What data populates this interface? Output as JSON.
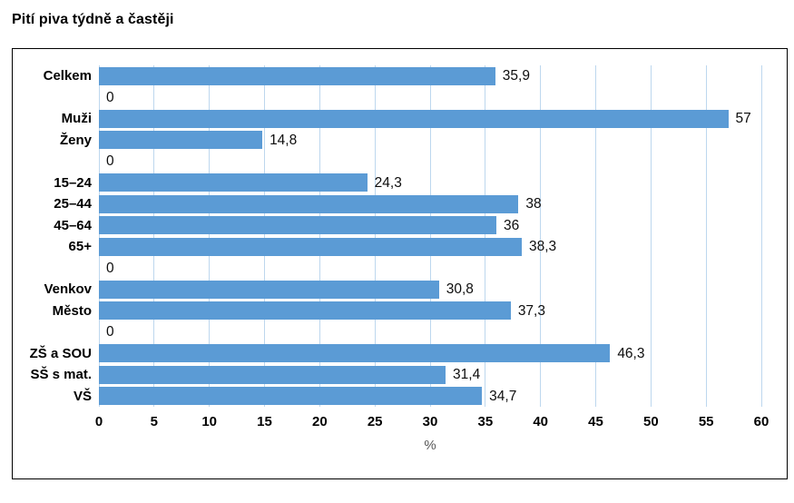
{
  "title": "Pití piva týdně a častěji",
  "chart_data": {
    "type": "bar",
    "orientation": "horizontal",
    "title": "Pití piva týdně a častěji",
    "categories": [
      "Celkem",
      "",
      "Muži",
      "Ženy",
      "",
      "15–24",
      "25–44",
      "45–64",
      "65+",
      "",
      "Venkov",
      "Město",
      "",
      "ZŠ a SOU",
      "SŠ s mat.",
      "VŠ"
    ],
    "values": [
      35.9,
      0,
      57,
      14.8,
      0,
      24.3,
      38,
      36,
      38.3,
      0,
      30.8,
      37.3,
      0,
      46.3,
      31.4,
      34.7
    ],
    "value_labels": [
      "35,9",
      "0",
      "57",
      "14,8",
      "0",
      "24,3",
      "38",
      "36",
      "38,3",
      "0",
      "30,8",
      "37,3",
      "0",
      "46,3",
      "31,4",
      "34,7"
    ],
    "xlabel": "%",
    "xlim": [
      0,
      60
    ],
    "xticks": [
      0,
      5,
      10,
      15,
      20,
      25,
      30,
      35,
      40,
      45,
      50,
      55,
      60
    ],
    "grid": "vertical-only",
    "legend": "none",
    "colors": {
      "bar": "#5B9BD5",
      "gridline": "#BDD7EE",
      "frame_border": "#000000",
      "label_text": "#000000",
      "axis_unit_text": "#595959"
    }
  }
}
